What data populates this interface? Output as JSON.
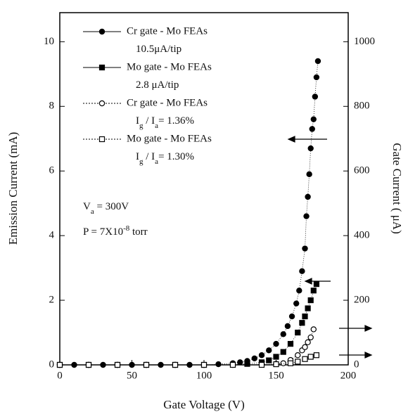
{
  "chart_data": {
    "type": "scatter",
    "xlabel": "Gate Voltage (V)",
    "ylabel": "Emission Current (mA)",
    "y2label": "Gate Current ( μA)",
    "xlim": [
      0,
      200
    ],
    "xticks": [
      0,
      50,
      100,
      150,
      200
    ],
    "ylim": [
      0,
      10.9
    ],
    "yticks": [
      0,
      2,
      4,
      6,
      8,
      10
    ],
    "y2lim": [
      0,
      1090
    ],
    "y2ticks": [
      0,
      200,
      400,
      600,
      800,
      1000
    ],
    "series": [
      {
        "name": "Cr gate - Mo FEAs",
        "note": {
          "parts": [
            "10.5μA/tip"
          ]
        },
        "marker": "circle",
        "filled": true,
        "color": "#000000",
        "axis": "y",
        "x": [
          0,
          10,
          20,
          30,
          40,
          50,
          60,
          70,
          80,
          90,
          100,
          110,
          120,
          125,
          130,
          135,
          140,
          145,
          150,
          155,
          158,
          161,
          164,
          166,
          168,
          170,
          171,
          172,
          173,
          174,
          175,
          176,
          177,
          178,
          179
        ],
        "values": [
          0,
          0,
          0,
          0,
          0,
          0,
          0,
          0,
          0,
          0,
          0,
          0.02,
          0.05,
          0.08,
          0.12,
          0.2,
          0.3,
          0.45,
          0.65,
          0.95,
          1.2,
          1.5,
          1.9,
          2.3,
          2.9,
          3.6,
          4.6,
          5.2,
          5.9,
          6.7,
          7.3,
          7.6,
          8.3,
          8.9,
          9.4
        ]
      },
      {
        "name": "Mo gate - Mo FEAs",
        "note": {
          "parts": [
            "2.8 μA/tip"
          ]
        },
        "marker": "square",
        "filled": true,
        "color": "#000000",
        "axis": "y",
        "x": [
          0,
          20,
          40,
          60,
          80,
          100,
          120,
          130,
          140,
          145,
          150,
          155,
          160,
          165,
          168,
          170,
          172,
          174,
          176,
          178
        ],
        "values": [
          0,
          0,
          0,
          0,
          0,
          0,
          0.01,
          0.03,
          0.08,
          0.14,
          0.25,
          0.4,
          0.65,
          1.0,
          1.3,
          1.5,
          1.75,
          2.0,
          2.3,
          2.5
        ]
      },
      {
        "name": "Cr gate - Mo FEAs",
        "note": {
          "parts": [
            "I",
            "g",
            " / I",
            "a",
            "= 1.36%"
          ],
          "shift": "sub"
        },
        "marker": "circle",
        "filled": false,
        "color": "#000000",
        "axis": "y2",
        "x": [
          0,
          20,
          40,
          60,
          80,
          100,
          120,
          140,
          150,
          155,
          160,
          165,
          168,
          170,
          172,
          174,
          176
        ],
        "values": [
          0,
          0,
          0,
          0,
          0,
          0,
          0,
          1,
          3,
          5,
          15,
          30,
          45,
          55,
          70,
          85,
          110
        ]
      },
      {
        "name": "Mo gate - Mo FEAs",
        "note": {
          "parts": [
            "I",
            "g",
            " / I",
            "a",
            "= 1.30%"
          ],
          "shift": "sub"
        },
        "marker": "square",
        "filled": false,
        "color": "#000000",
        "axis": "y2",
        "x": [
          0,
          20,
          40,
          60,
          80,
          100,
          120,
          140,
          150,
          160,
          165,
          170,
          174,
          178
        ],
        "values": [
          0,
          0,
          0,
          0,
          0,
          0,
          0,
          0,
          2,
          5,
          10,
          18,
          25,
          30
        ]
      }
    ],
    "annotations": [
      {
        "parts": [
          "V",
          "a",
          " = 300V"
        ],
        "shift": "sub"
      },
      {
        "parts": [
          "P = 7X10",
          "-8",
          "  torr"
        ],
        "shift": "super"
      }
    ]
  }
}
